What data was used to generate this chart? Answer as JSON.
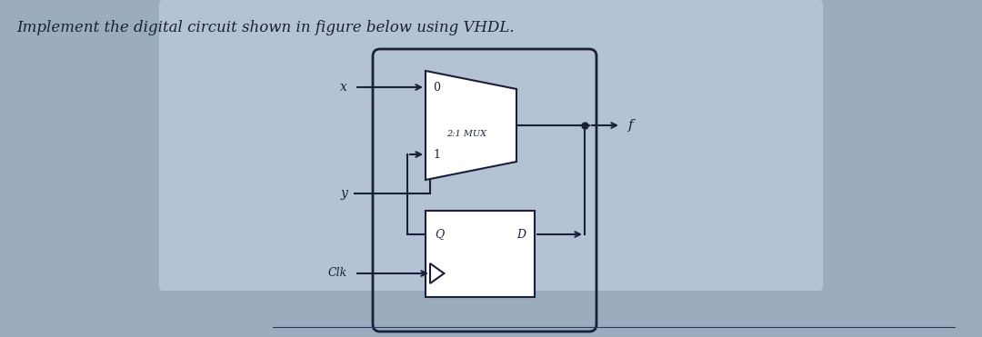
{
  "title": "Implement the digital circuit shown in figure below using VHDL.",
  "bg_color": "#9aacbe",
  "paper_color": "#c8d4df",
  "line_color": "#1a1f3a",
  "text_color": "#1a1f3a",
  "mux_label": "2:1 MUX",
  "mux_in0_label": "0",
  "mux_in1_label": "1",
  "dff_q_label": "Q",
  "dff_d_label": "D",
  "input_x_label": "x",
  "input_y_label": "y",
  "input_clk_label": "Clk",
  "output_f_label": "f"
}
